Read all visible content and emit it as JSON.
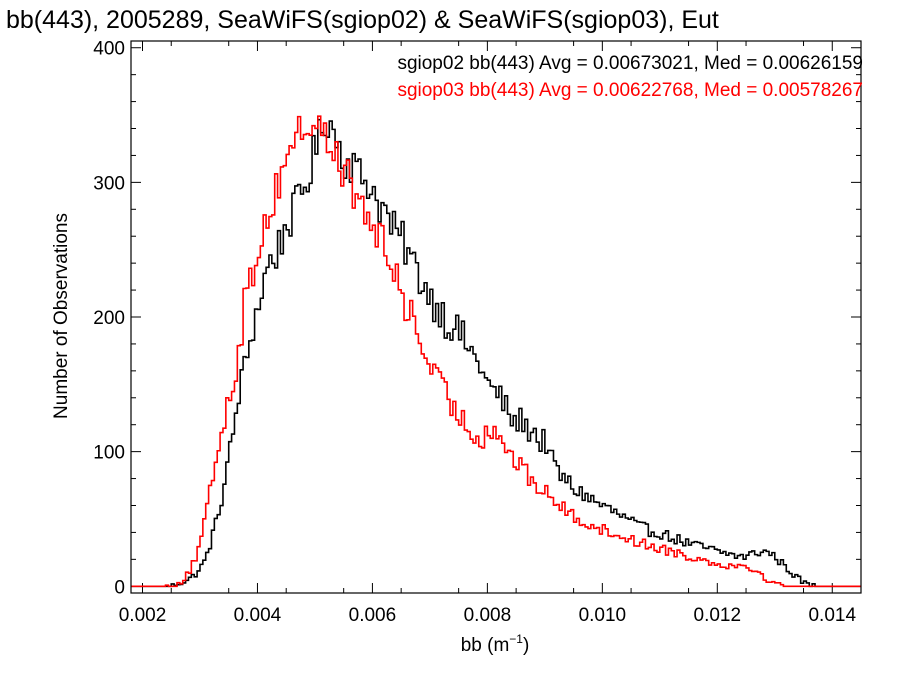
{
  "chart_data": {
    "type": "histogram",
    "title": "bb(443), 2005289, SeaWiFS(sgiop02) & SeaWiFS(sgiop03), Eut",
    "xlabel_base": "bb (m",
    "xlabel_sup": "−1",
    "xlabel_tail": ")",
    "ylabel": "Number of Observations",
    "xlim": [
      0.0018,
      0.0145
    ],
    "ylim": [
      -5,
      405
    ],
    "x_ticks": [
      {
        "value": 0.002,
        "label": "0.002"
      },
      {
        "value": 0.004,
        "label": "0.004"
      },
      {
        "value": 0.006,
        "label": "0.006"
      },
      {
        "value": 0.008,
        "label": "0.008"
      },
      {
        "value": 0.01,
        "label": "0.010"
      },
      {
        "value": 0.012,
        "label": "0.012"
      },
      {
        "value": 0.014,
        "label": "0.014"
      }
    ],
    "y_ticks": [
      {
        "value": 0,
        "label": "0"
      },
      {
        "value": 100,
        "label": "100"
      },
      {
        "value": 200,
        "label": "200"
      },
      {
        "value": 300,
        "label": "300"
      },
      {
        "value": 400,
        "label": "400"
      }
    ],
    "bin_width": 5e-05,
    "series": [
      {
        "name": "sgiop02",
        "color": "#000000",
        "stats_text": "sgiop02 bb(443) Avg = 0.00673021, Med = 0.00626159",
        "points": [
          [
            0.0025,
            0
          ],
          [
            0.0026,
            2
          ],
          [
            0.0027,
            3
          ],
          [
            0.0028,
            5
          ],
          [
            0.0029,
            8
          ],
          [
            0.003,
            13
          ],
          [
            0.0031,
            20
          ],
          [
            0.0032,
            35
          ],
          [
            0.0033,
            50
          ],
          [
            0.0034,
            70
          ],
          [
            0.0035,
            95
          ],
          [
            0.0036,
            120
          ],
          [
            0.0037,
            150
          ],
          [
            0.0038,
            165
          ],
          [
            0.0039,
            190
          ],
          [
            0.004,
            205
          ],
          [
            0.0041,
            225
          ],
          [
            0.0042,
            240
          ],
          [
            0.0043,
            245
          ],
          [
            0.0044,
            255
          ],
          [
            0.0045,
            268
          ],
          [
            0.0046,
            275
          ],
          [
            0.0047,
            285
          ],
          [
            0.0048,
            295
          ],
          [
            0.0049,
            305
          ],
          [
            0.005,
            325
          ],
          [
            0.0051,
            335
          ],
          [
            0.0052,
            350
          ],
          [
            0.0053,
            340
          ],
          [
            0.0054,
            330
          ],
          [
            0.0055,
            318
          ],
          [
            0.0056,
            315
          ],
          [
            0.0057,
            312
          ],
          [
            0.0058,
            303
          ],
          [
            0.0059,
            302
          ],
          [
            0.006,
            295
          ],
          [
            0.0061,
            285
          ],
          [
            0.0062,
            280
          ],
          [
            0.0063,
            270
          ],
          [
            0.0064,
            262
          ],
          [
            0.0065,
            258
          ],
          [
            0.0066,
            250
          ],
          [
            0.0067,
            240
          ],
          [
            0.0068,
            232
          ],
          [
            0.0069,
            225
          ],
          [
            0.007,
            215
          ],
          [
            0.0071,
            210
          ],
          [
            0.0072,
            205
          ],
          [
            0.0073,
            195
          ],
          [
            0.0074,
            195
          ],
          [
            0.0075,
            188
          ],
          [
            0.0076,
            183
          ],
          [
            0.0077,
            175
          ],
          [
            0.0078,
            168
          ],
          [
            0.0079,
            163
          ],
          [
            0.008,
            150
          ],
          [
            0.0081,
            145
          ],
          [
            0.0082,
            142
          ],
          [
            0.0083,
            135
          ],
          [
            0.0084,
            125
          ],
          [
            0.0085,
            120
          ],
          [
            0.0086,
            125
          ],
          [
            0.0087,
            115
          ],
          [
            0.0088,
            118
          ],
          [
            0.0089,
            105
          ],
          [
            0.009,
            110
          ],
          [
            0.0091,
            95
          ],
          [
            0.0092,
            88
          ],
          [
            0.0093,
            80
          ],
          [
            0.0094,
            78
          ],
          [
            0.0095,
            72
          ],
          [
            0.0096,
            70
          ],
          [
            0.0097,
            68
          ],
          [
            0.0098,
            65
          ],
          [
            0.0099,
            62
          ],
          [
            0.01,
            60
          ],
          [
            0.0101,
            58
          ],
          [
            0.0102,
            55
          ],
          [
            0.0103,
            53
          ],
          [
            0.0104,
            50
          ],
          [
            0.0105,
            48
          ],
          [
            0.0106,
            45
          ],
          [
            0.0107,
            43
          ],
          [
            0.0108,
            42
          ],
          [
            0.0109,
            40
          ],
          [
            0.011,
            40
          ],
          [
            0.0111,
            38
          ],
          [
            0.0112,
            36
          ],
          [
            0.0113,
            35
          ],
          [
            0.0114,
            33
          ],
          [
            0.0115,
            32
          ],
          [
            0.0116,
            30
          ],
          [
            0.0117,
            30
          ],
          [
            0.0118,
            28
          ],
          [
            0.0119,
            28
          ],
          [
            0.012,
            25
          ],
          [
            0.0121,
            25
          ],
          [
            0.0122,
            24
          ],
          [
            0.0123,
            23
          ],
          [
            0.0124,
            22
          ],
          [
            0.0125,
            22
          ],
          [
            0.0126,
            24
          ],
          [
            0.0127,
            25
          ],
          [
            0.0128,
            26
          ],
          [
            0.0129,
            25
          ],
          [
            0.013,
            22
          ],
          [
            0.0131,
            18
          ],
          [
            0.0132,
            14
          ],
          [
            0.0133,
            10
          ],
          [
            0.0134,
            6
          ],
          [
            0.0135,
            3
          ],
          [
            0.0136,
            1
          ],
          [
            0.0137,
            0
          ]
        ]
      },
      {
        "name": "sgiop03",
        "color": "#ff0000",
        "stats_text": "sgiop03 bb(443) Avg = 0.00622768, Med = 0.00578267",
        "points": [
          [
            0.0024,
            0
          ],
          [
            0.0025,
            1
          ],
          [
            0.0026,
            2
          ],
          [
            0.0027,
            4
          ],
          [
            0.0028,
            10
          ],
          [
            0.0029,
            18
          ],
          [
            0.003,
            30
          ],
          [
            0.0031,
            52
          ],
          [
            0.0032,
            75
          ],
          [
            0.0033,
            100
          ],
          [
            0.0034,
            120
          ],
          [
            0.0035,
            140
          ],
          [
            0.0036,
            155
          ],
          [
            0.0037,
            185
          ],
          [
            0.0038,
            215
          ],
          [
            0.0039,
            230
          ],
          [
            0.004,
            250
          ],
          [
            0.0041,
            265
          ],
          [
            0.0042,
            278
          ],
          [
            0.0043,
            290
          ],
          [
            0.0044,
            305
          ],
          [
            0.0045,
            320
          ],
          [
            0.0046,
            330
          ],
          [
            0.0047,
            336
          ],
          [
            0.0048,
            340
          ],
          [
            0.0049,
            342
          ],
          [
            0.005,
            345
          ],
          [
            0.0051,
            340
          ],
          [
            0.0052,
            330
          ],
          [
            0.0053,
            325
          ],
          [
            0.0054,
            318
          ],
          [
            0.0055,
            310
          ],
          [
            0.0056,
            300
          ],
          [
            0.0057,
            290
          ],
          [
            0.0058,
            280
          ],
          [
            0.0059,
            275
          ],
          [
            0.006,
            268
          ],
          [
            0.0061,
            262
          ],
          [
            0.0062,
            250
          ],
          [
            0.0063,
            240
          ],
          [
            0.0064,
            232
          ],
          [
            0.0065,
            220
          ],
          [
            0.0066,
            208
          ],
          [
            0.0067,
            198
          ],
          [
            0.0068,
            185
          ],
          [
            0.0069,
            175
          ],
          [
            0.007,
            165
          ],
          [
            0.0071,
            155
          ],
          [
            0.0072,
            148
          ],
          [
            0.0073,
            140
          ],
          [
            0.0074,
            132
          ],
          [
            0.0075,
            128
          ],
          [
            0.0076,
            122
          ],
          [
            0.0077,
            115
          ],
          [
            0.0078,
            112
          ],
          [
            0.0079,
            110
          ],
          [
            0.008,
            115
          ],
          [
            0.0081,
            118
          ],
          [
            0.0082,
            112
          ],
          [
            0.0083,
            105
          ],
          [
            0.0084,
            98
          ],
          [
            0.0085,
            92
          ],
          [
            0.0086,
            88
          ],
          [
            0.0087,
            82
          ],
          [
            0.0088,
            78
          ],
          [
            0.0089,
            72
          ],
          [
            0.009,
            70
          ],
          [
            0.0091,
            68
          ],
          [
            0.0092,
            62
          ],
          [
            0.0093,
            58
          ],
          [
            0.0094,
            55
          ],
          [
            0.0095,
            52
          ],
          [
            0.0096,
            50
          ],
          [
            0.0097,
            48
          ],
          [
            0.0098,
            46
          ],
          [
            0.0099,
            44
          ],
          [
            0.01,
            42
          ],
          [
            0.0101,
            40
          ],
          [
            0.0102,
            39
          ],
          [
            0.0103,
            38
          ],
          [
            0.0104,
            36
          ],
          [
            0.0105,
            35
          ],
          [
            0.0106,
            33
          ],
          [
            0.0107,
            32
          ],
          [
            0.0108,
            30
          ],
          [
            0.0109,
            30
          ],
          [
            0.011,
            28
          ],
          [
            0.0111,
            27
          ],
          [
            0.0112,
            26
          ],
          [
            0.0113,
            25
          ],
          [
            0.0114,
            24
          ],
          [
            0.0115,
            22
          ],
          [
            0.0116,
            21
          ],
          [
            0.0117,
            20
          ],
          [
            0.0118,
            19
          ],
          [
            0.0119,
            18
          ],
          [
            0.012,
            17
          ],
          [
            0.0121,
            16
          ],
          [
            0.0122,
            16
          ],
          [
            0.0123,
            15
          ],
          [
            0.0124,
            15
          ],
          [
            0.0125,
            16
          ],
          [
            0.0126,
            14
          ],
          [
            0.0127,
            10
          ],
          [
            0.0128,
            7
          ],
          [
            0.0129,
            4
          ],
          [
            0.013,
            2
          ],
          [
            0.0131,
            1
          ],
          [
            0.0132,
            0
          ]
        ]
      }
    ]
  }
}
